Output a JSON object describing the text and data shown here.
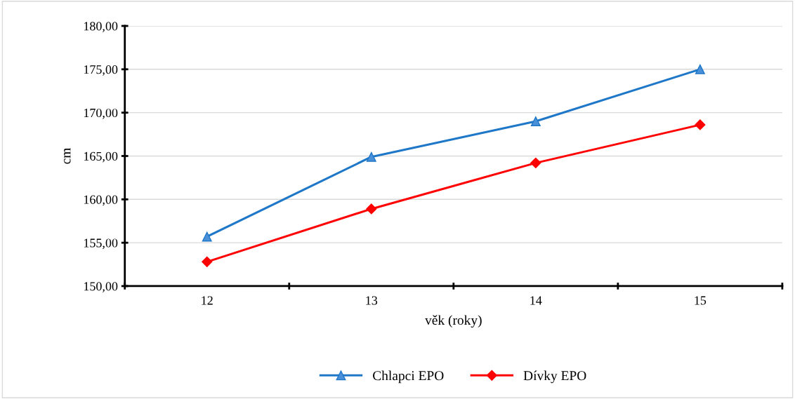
{
  "chart_data": {
    "type": "line",
    "xlabel": "věk (roky)",
    "ylabel": "cm",
    "categories": [
      "12",
      "13",
      "14",
      "15"
    ],
    "series": [
      {
        "name": "Chlapci EPO",
        "color": "#1f77c8",
        "marker": "triangle",
        "values": [
          155.7,
          164.9,
          169.0,
          175.0
        ]
      },
      {
        "name": "Dívky EPO",
        "color": "#ff0000",
        "marker": "diamond",
        "values": [
          152.8,
          158.9,
          164.2,
          168.6
        ]
      }
    ],
    "ylim": [
      150,
      180
    ],
    "yticks": [
      {
        "value": 150,
        "label": "150,00"
      },
      {
        "value": 155,
        "label": "155,00"
      },
      {
        "value": 160,
        "label": "160,00"
      },
      {
        "value": 165,
        "label": "165,00"
      },
      {
        "value": 170,
        "label": "170,00"
      },
      {
        "value": 175,
        "label": "175,00"
      },
      {
        "value": 180,
        "label": "180,00"
      }
    ],
    "grid": "y",
    "legend": "bottom",
    "line_style": "solid"
  }
}
